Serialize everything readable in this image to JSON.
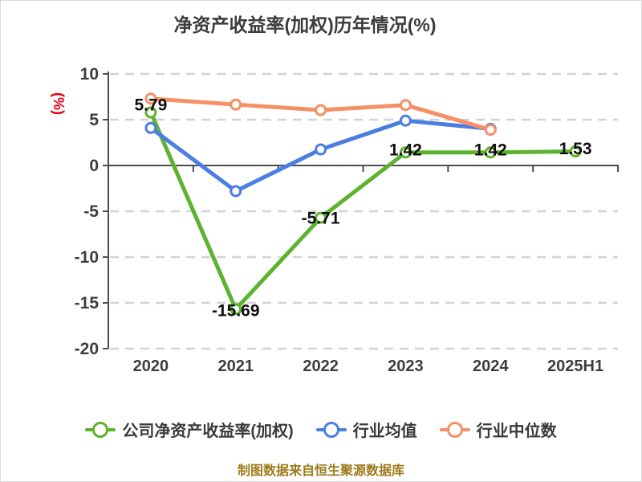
{
  "title": "净资产收益率(加权)历年情况(%)",
  "footer_note": "制图数据来自恒生聚源数据库",
  "colors": {
    "company_green": "#5db32e",
    "industry_avg_blue": "#4c7ee2",
    "industry_median_orange": "#f58f66",
    "axis_name_red": "#e60012",
    "footer_gold": "#9e7a1c",
    "axis_line": "#4d4d4d",
    "tick_label": "#3d3d3d",
    "grid_line": "#d3d3d3",
    "point_label": "#0f0f0f"
  },
  "chart_data": {
    "type": "line",
    "title": "净资产收益率(加权)历年情况(%)",
    "categories": [
      "2020",
      "2021",
      "2022",
      "2023",
      "2024",
      "2025H1"
    ],
    "y_axis": {
      "name": "(%)",
      "ticks": [
        10,
        5,
        0,
        -5,
        -10,
        -15,
        -20
      ],
      "min": -20,
      "max": 10
    },
    "grid": {
      "horizontal_dashed": true,
      "vertical": false
    },
    "legend_position": "bottom",
    "series": [
      {
        "name": "公司净资产收益率(加权)",
        "color": "#5db32e",
        "values": [
          5.79,
          -15.69,
          -5.71,
          1.42,
          1.42,
          1.53
        ],
        "point_labels": [
          "5.79",
          "-15.69",
          "-5.71",
          "1.42",
          "1.42",
          "1.53"
        ],
        "label_dy": [
          -9,
          2,
          1,
          -3,
          -3,
          -3
        ]
      },
      {
        "name": "行业均值",
        "color": "#4c7ee2",
        "values": [
          4.1,
          -2.8,
          1.75,
          4.9,
          4.0,
          null
        ],
        "point_labels": []
      },
      {
        "name": "行业中位数",
        "color": "#f58f66",
        "values": [
          7.3,
          6.65,
          6.05,
          6.6,
          3.9,
          null
        ],
        "point_labels": []
      }
    ]
  }
}
